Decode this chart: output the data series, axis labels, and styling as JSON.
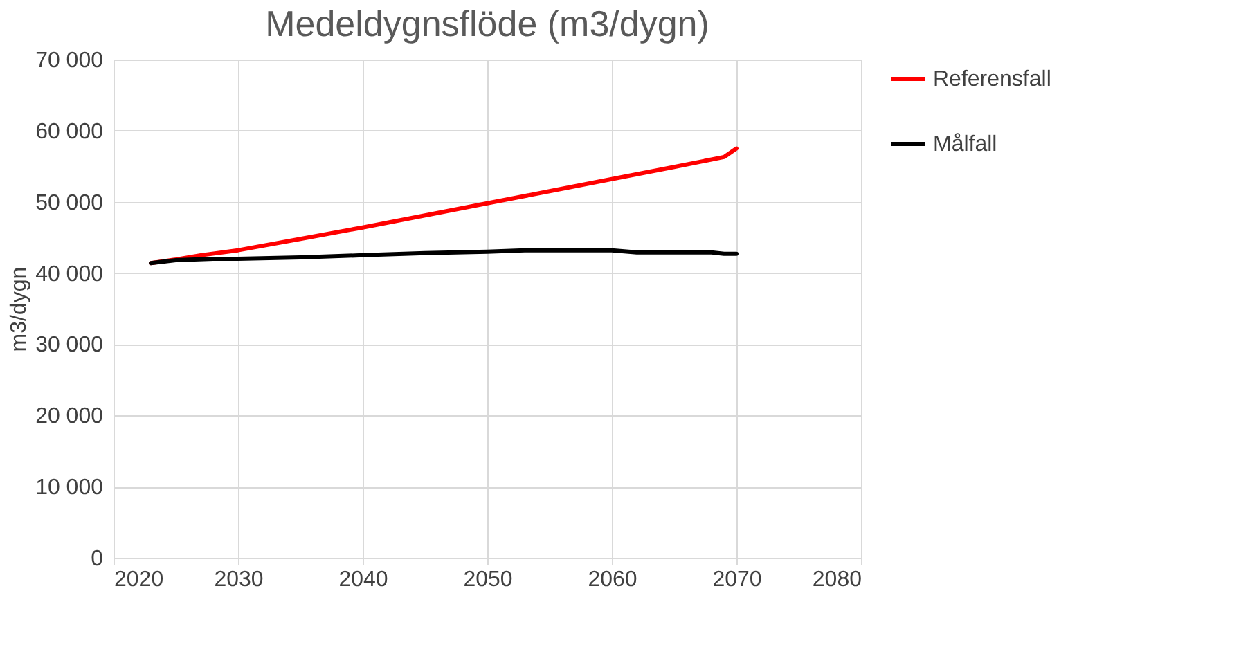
{
  "chart_data": {
    "type": "line",
    "title": "Medeldygnsflöde  (m3/dygn)",
    "ylabel": "m3/dygn",
    "xlim": [
      2020,
      2080
    ],
    "xticks": [
      2020,
      2030,
      2040,
      2050,
      2060,
      2070,
      2080
    ],
    "ylim": [
      0,
      70000
    ],
    "yticks": [
      0,
      {
        "value": 10000,
        "label": "10 000"
      },
      {
        "value": 20000,
        "label": "20 000"
      },
      {
        "value": 30000,
        "label": "30 000"
      },
      {
        "value": 40000,
        "label": "40 000"
      },
      {
        "value": 50000,
        "label": "50 000"
      },
      {
        "value": 60000,
        "label": "60 000"
      },
      {
        "value": 70000,
        "label": "70 000"
      }
    ],
    "grid": true,
    "legend": "right",
    "marker": "none",
    "line_style": "solid",
    "series": [
      {
        "name": "Referensfall",
        "color": "#ff0000",
        "x": [
          2023,
          2025,
          2027,
          2030,
          2035,
          2040,
          2045,
          2050,
          2055,
          2060,
          2065,
          2069,
          2070
        ],
        "values": [
          41400,
          41900,
          42500,
          43200,
          44800,
          46400,
          48100,
          49800,
          51500,
          53200,
          54900,
          56300,
          57500
        ]
      },
      {
        "name": "Målfall",
        "color": "#000000",
        "x": [
          2023,
          2025,
          2028,
          2030,
          2035,
          2040,
          2045,
          2050,
          2053,
          2055,
          2060,
          2062,
          2068,
          2069,
          2070
        ],
        "values": [
          41400,
          41800,
          42000,
          42000,
          42200,
          42500,
          42800,
          43000,
          43200,
          43200,
          43200,
          42900,
          42900,
          42700,
          42700
        ]
      }
    ]
  }
}
